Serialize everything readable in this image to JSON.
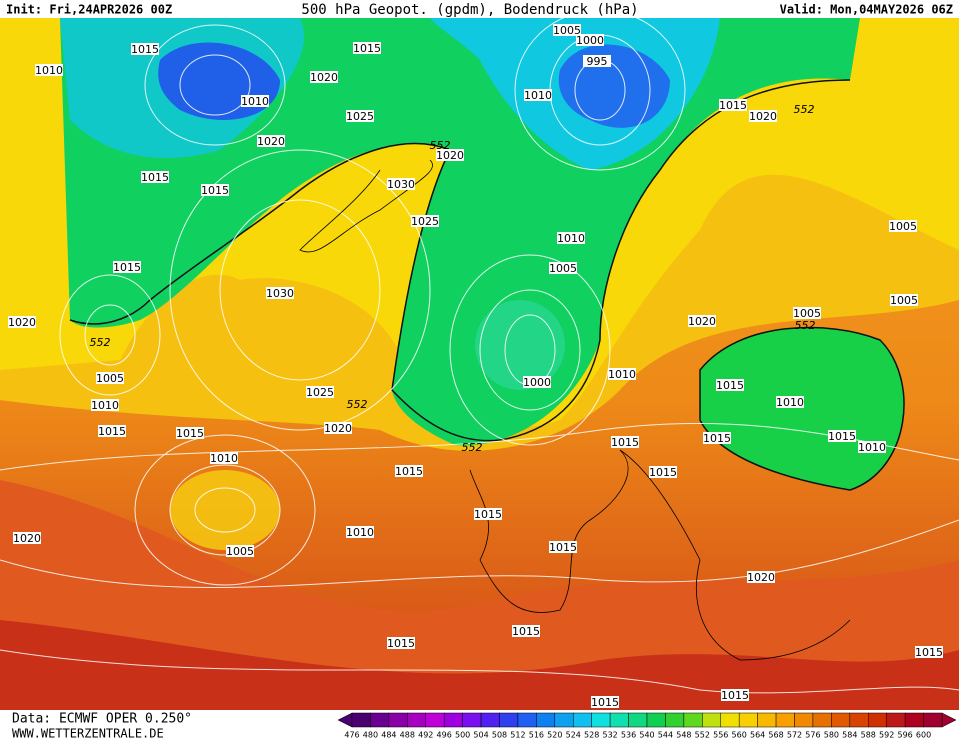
{
  "header": {
    "init": "Init: Fri,24APR2026 00Z",
    "title": "500 hPa Geopot. (gpdm), Bodendruck (hPa)",
    "valid": "Valid: Mon,04MAY2026 06Z"
  },
  "footer": {
    "source": "Data: ECMWF OPER 0.250°",
    "url": "WWW.WETTERZENTRALE.DE"
  },
  "isobar_labels": [
    1015,
    1010,
    1015,
    1020,
    1010,
    1005,
    1000,
    995,
    1010,
    1015,
    1020,
    1025,
    1020,
    1020,
    1015,
    1015,
    1030,
    1025,
    1010,
    1005,
    1015,
    1005,
    1030,
    1005,
    1020,
    1020,
    1005,
    1005,
    1000,
    1010,
    1015,
    1025,
    1010,
    1010,
    1020,
    1015,
    1015,
    1015,
    1015,
    1015,
    1010,
    1010,
    1015,
    1015,
    1015,
    1010,
    1005,
    1015,
    1020,
    1020,
    1015,
    1015,
    1015,
    1015,
    1015
  ],
  "contour_labels": [
    552,
    552,
    552,
    552,
    552,
    552
  ],
  "legend": [
    {
      "value": 476,
      "color": "#4b0070"
    },
    {
      "value": 480,
      "color": "#6a0090"
    },
    {
      "value": 484,
      "color": "#8a00a8"
    },
    {
      "value": 488,
      "color": "#a800c0"
    },
    {
      "value": 492,
      "color": "#c000d8"
    },
    {
      "value": 496,
      "color": "#a000e0"
    },
    {
      "value": 500,
      "color": "#7a10f0"
    },
    {
      "value": 504,
      "color": "#5020f0"
    },
    {
      "value": 508,
      "color": "#3040f0"
    },
    {
      "value": 512,
      "color": "#2060f0"
    },
    {
      "value": 516,
      "color": "#1080f0"
    },
    {
      "value": 520,
      "color": "#10a0f0"
    },
    {
      "value": 524,
      "color": "#10c0f0"
    },
    {
      "value": 528,
      "color": "#10e0e0"
    },
    {
      "value": 532,
      "color": "#10e0b0"
    },
    {
      "value": 536,
      "color": "#10d880"
    },
    {
      "value": 540,
      "color": "#10d050"
    },
    {
      "value": 544,
      "color": "#30d030"
    },
    {
      "value": 548,
      "color": "#60d820"
    },
    {
      "value": 552,
      "color": "#c0e010"
    },
    {
      "value": 556,
      "color": "#f0e000"
    },
    {
      "value": 560,
      "color": "#f8d000"
    },
    {
      "value": 564,
      "color": "#f8b800"
    },
    {
      "value": 568,
      "color": "#f8a000"
    },
    {
      "value": 572,
      "color": "#f08800"
    },
    {
      "value": 576,
      "color": "#e87000"
    },
    {
      "value": 580,
      "color": "#e05800"
    },
    {
      "value": 584,
      "color": "#d84400"
    },
    {
      "value": 588,
      "color": "#d03000"
    },
    {
      "value": 592,
      "color": "#c01818"
    },
    {
      "value": 596,
      "color": "#b00020"
    },
    {
      "value": 600,
      "color": "#a00030"
    }
  ]
}
